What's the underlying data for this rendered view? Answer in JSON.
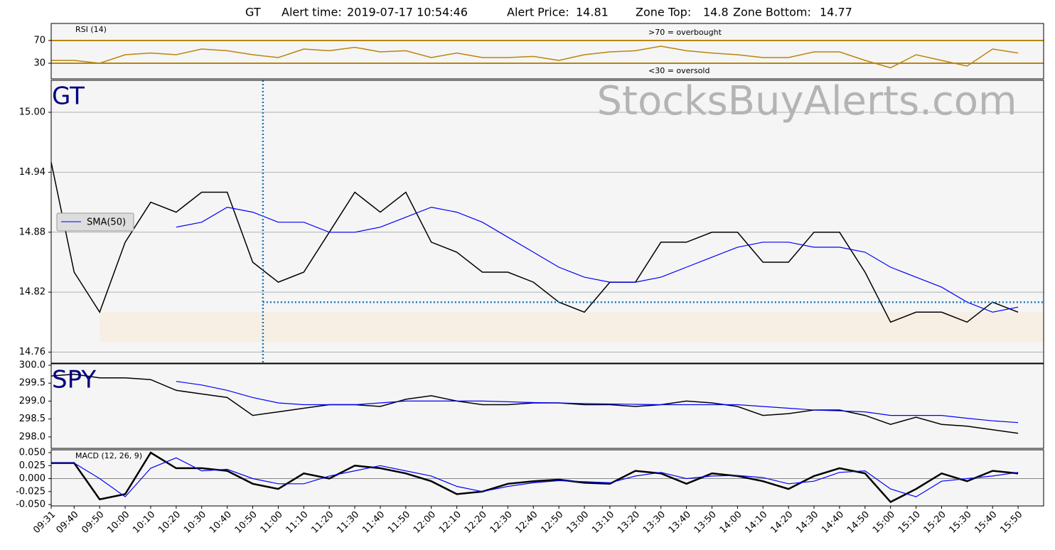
{
  "title": {
    "symbol": "GT",
    "alert_time_label": "Alert time:",
    "alert_time": "2019-07-17 10:54:46",
    "alert_price_label": "Alert Price:",
    "alert_price": 14.81,
    "zone_top_label": "Zone Top:",
    "zone_top": 14.8,
    "zone_bottom_label": "Zone Bottom:",
    "zone_bottom": 14.77
  },
  "watermark": "StocksBuyAlerts.com",
  "chart_data": {
    "type": "line",
    "categories": [
      "09:31",
      "09:40",
      "09:50",
      "10:00",
      "10:10",
      "10:20",
      "10:30",
      "10:40",
      "10:50",
      "11:00",
      "11:10",
      "11:20",
      "11:30",
      "11:40",
      "11:50",
      "12:00",
      "12:10",
      "12:20",
      "12:30",
      "12:40",
      "12:50",
      "13:00",
      "13:10",
      "13:20",
      "13:30",
      "13:40",
      "13:50",
      "14:00",
      "14:10",
      "14:20",
      "14:30",
      "14:40",
      "14:50",
      "15:00",
      "15:10",
      "15:20",
      "15:30",
      "15:40",
      "15:50"
    ],
    "panels": [
      {
        "label": "RSI (14)",
        "ylim": [
          2.5,
          100
        ],
        "yticks": [
          30,
          70
        ],
        "level_color": "#b8860b",
        "levels": [
          {
            "value": 70,
            "label": ">70 = overbought"
          },
          {
            "value": 30,
            "label": "<30 = oversold"
          }
        ],
        "series": [
          {
            "color": "#b8860b",
            "values": [
              35,
              35,
              30,
              45,
              48,
              45,
              55,
              52,
              45,
              40,
              55,
              52,
              58,
              50,
              52,
              40,
              48,
              40,
              40,
              42,
              35,
              45,
              50,
              52,
              60,
              52,
              48,
              45,
              40,
              40,
              50,
              50,
              35,
              22,
              45,
              35,
              25,
              55,
              48
            ]
          }
        ]
      },
      {
        "label": "GT",
        "ylim": [
          14.749,
          15.032
        ],
        "yticks": [
          14.76,
          14.82,
          14.88,
          14.94,
          {
            "value": 15,
            "label": "15.00"
          }
        ],
        "grid": true,
        "zone_color": "#f7efe3",
        "series": [
          {
            "color": "#000000",
            "values": [
              14.95,
              14.84,
              14.8,
              14.87,
              14.91,
              14.9,
              14.92,
              14.92,
              14.85,
              14.83,
              14.84,
              14.88,
              14.92,
              14.9,
              14.92,
              14.87,
              14.86,
              14.84,
              14.84,
              14.83,
              14.81,
              14.8,
              14.83,
              14.83,
              14.87,
              14.87,
              14.88,
              14.88,
              14.85,
              14.85,
              14.88,
              14.88,
              14.84,
              14.79,
              14.8,
              14.8,
              14.79,
              14.81,
              14.8
            ]
          },
          {
            "name": "SMA(50)",
            "color": "#0000ff",
            "values": [
              null,
              null,
              null,
              null,
              null,
              14.885,
              14.89,
              14.905,
              14.9,
              14.89,
              14.89,
              14.88,
              14.88,
              14.885,
              14.895,
              14.905,
              14.9,
              14.89,
              14.875,
              14.86,
              14.845,
              14.835,
              14.83,
              14.83,
              14.835,
              14.845,
              14.855,
              14.865,
              14.87,
              14.87,
              14.865,
              14.865,
              14.86,
              14.845,
              14.835,
              14.825,
              14.81,
              14.8,
              14.805
            ]
          }
        ]
      },
      {
        "label": "SPY",
        "ylim": [
          297.68,
          300.04
        ],
        "yticks": [
          {
            "value": 298,
            "label": "298.0"
          },
          {
            "value": 298.5,
            "label": "298.5"
          },
          {
            "value": 299,
            "label": "299.0"
          },
          {
            "value": 299.5,
            "label": "299.5"
          },
          {
            "value": 300,
            "label": "300.0"
          }
        ],
        "series": [
          {
            "color": "#000000",
            "values": [
              299.7,
              299.75,
              299.65,
              299.65,
              299.6,
              299.3,
              299.2,
              299.1,
              298.6,
              298.7,
              298.8,
              298.9,
              298.9,
              298.85,
              299.05,
              299.15,
              299.0,
              298.9,
              298.9,
              298.95,
              298.95,
              298.9,
              298.9,
              298.85,
              298.9,
              299.0,
              298.95,
              298.85,
              298.6,
              298.65,
              298.75,
              298.75,
              298.6,
              298.35,
              298.55,
              298.35,
              298.3,
              298.2,
              298.1
            ]
          },
          {
            "color": "#0000ff",
            "values": [
              null,
              null,
              null,
              null,
              null,
              299.55,
              299.45,
              299.3,
              299.1,
              298.95,
              298.9,
              298.9,
              298.9,
              298.95,
              299.0,
              299.0,
              299.0,
              299.0,
              298.98,
              298.96,
              298.95,
              298.93,
              298.92,
              298.91,
              298.9,
              298.9,
              298.9,
              298.9,
              298.85,
              298.8,
              298.75,
              298.73,
              298.7,
              298.6,
              298.6,
              298.6,
              298.52,
              298.45,
              298.4
            ]
          }
        ]
      },
      {
        "label": "MACD (12, 26, 9)",
        "ylim": [
          -0.0527,
          0.0555
        ],
        "yticks": [
          {
            "value": -0.05,
            "label": "-0.050"
          },
          {
            "value": -0.025,
            "label": "-0.025"
          },
          {
            "value": 0,
            "label": "0.000"
          },
          {
            "value": 0.025,
            "label": "0.025"
          },
          {
            "value": 0.05,
            "label": "0.050"
          }
        ],
        "series": [
          {
            "color": "#000000",
            "values": [
              0.03,
              0.03,
              -0.04,
              -0.03,
              0.05,
              0.02,
              0.02,
              0.015,
              -0.01,
              -0.02,
              0.01,
              0.0,
              0.025,
              0.02,
              0.01,
              -0.005,
              -0.03,
              -0.025,
              -0.01,
              -0.005,
              -0.002,
              -0.008,
              -0.01,
              0.015,
              0.01,
              -0.01,
              0.01,
              0.005,
              -0.005,
              -0.02,
              0.005,
              0.02,
              0.01,
              -0.045,
              -0.02,
              0.01,
              -0.005,
              0.015,
              0.01
            ]
          },
          {
            "color": "#0000ff",
            "values": [
              0.03,
              0.03,
              0.0,
              -0.035,
              0.02,
              0.04,
              0.015,
              0.018,
              0.0,
              -0.01,
              -0.01,
              0.005,
              0.015,
              0.025,
              0.015,
              0.005,
              -0.015,
              -0.025,
              -0.015,
              -0.008,
              -0.004,
              -0.006,
              -0.008,
              0.005,
              0.012,
              0.0,
              0.005,
              0.006,
              0.002,
              -0.01,
              -0.005,
              0.012,
              0.015,
              -0.02,
              -0.035,
              -0.005,
              0.0,
              0.005,
              0.012
            ]
          }
        ]
      }
    ]
  }
}
